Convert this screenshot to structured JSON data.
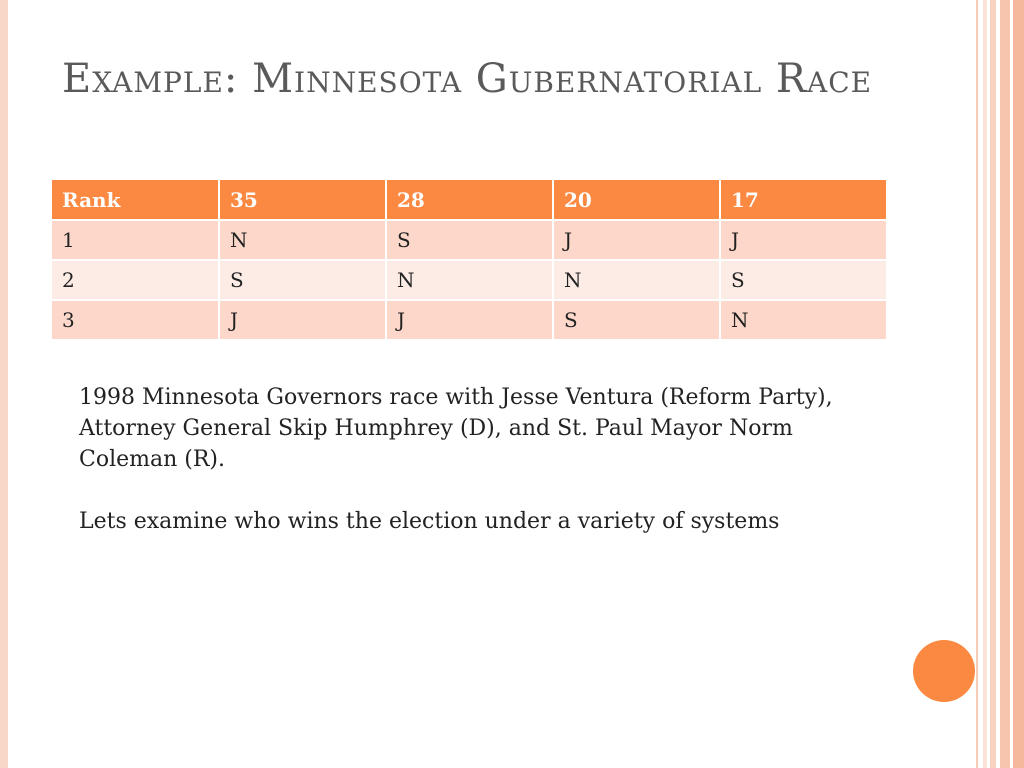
{
  "slide": {
    "title": "Example: Minnesota Gubernatorial Race",
    "table": {
      "headers": [
        "Rank",
        "35",
        "28",
        "20",
        "17"
      ],
      "rows": [
        [
          "1",
          "N",
          "S",
          "J",
          "J"
        ],
        [
          "2",
          "S",
          "N",
          "N",
          "S"
        ],
        [
          "3",
          "J",
          "J",
          "S",
          "N"
        ]
      ]
    },
    "paragraphs": [
      "1998 Minnesota Governors race with Jesse Ventura (Reform Party), Attorney General Skip Humphrey (D), and St. Paul Mayor Norm Coleman (R).",
      "Lets examine who wins the election under a variety of systems"
    ]
  },
  "colors": {
    "accent": "#fb8942",
    "row_dark": "#fcd7ca",
    "row_light": "#fdebe5",
    "title_text": "#5a5a5a"
  }
}
